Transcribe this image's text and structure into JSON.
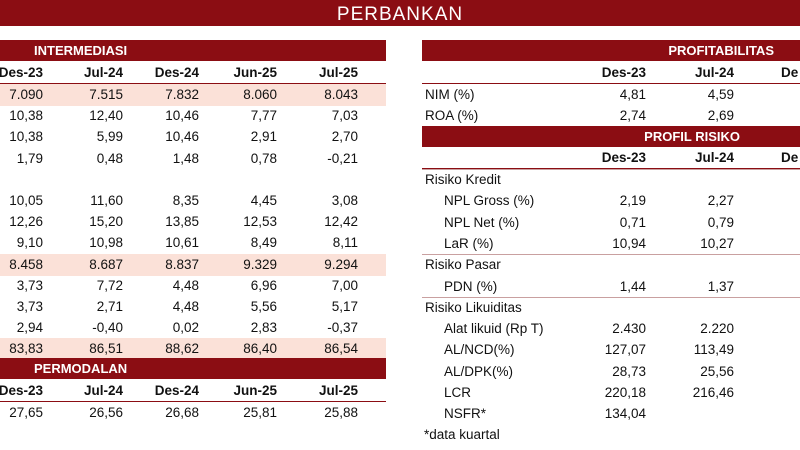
{
  "banner_title": "PERBANKAN",
  "intermediasi": {
    "title": "INTERMEDIASI",
    "columns": [
      "Des-23",
      "Jul-24",
      "Des-24",
      "Jun-25",
      "Jul-25"
    ],
    "rows": [
      {
        "values": [
          "7.090",
          "7.515",
          "7.832",
          "8.060",
          "8.043"
        ],
        "highlight": true
      },
      {
        "values": [
          "10,38",
          "12,40",
          "10,46",
          "7,77",
          "7,03"
        ]
      },
      {
        "values": [
          "10,38",
          "5,99",
          "10,46",
          "2,91",
          "2,70"
        ]
      },
      {
        "values": [
          "1,79",
          "0,48",
          "1,48",
          "0,78",
          "-0,21"
        ]
      },
      {
        "values": [
          "",
          "",
          "",
          "",
          ""
        ]
      },
      {
        "values": [
          "10,05",
          "11,60",
          "8,35",
          "4,45",
          "3,08"
        ]
      },
      {
        "values": [
          "12,26",
          "15,20",
          "13,85",
          "12,53",
          "12,42"
        ]
      },
      {
        "values": [
          "9,10",
          "10,98",
          "10,61",
          "8,49",
          "8,11"
        ]
      },
      {
        "values": [
          "8.458",
          "8.687",
          "8.837",
          "9.329",
          "9.294"
        ],
        "highlight": true
      },
      {
        "values": [
          "3,73",
          "7,72",
          "4,48",
          "6,96",
          "7,00"
        ]
      },
      {
        "values": [
          "3,73",
          "2,71",
          "4,48",
          "5,56",
          "5,17"
        ]
      },
      {
        "values": [
          "2,94",
          "-0,40",
          "0,02",
          "2,83",
          "-0,37"
        ]
      },
      {
        "values": [
          "83,83",
          "86,51",
          "88,62",
          "86,40",
          "86,54"
        ],
        "highlight": true
      }
    ]
  },
  "permodalan": {
    "title": "PERMODALAN",
    "columns": [
      "Des-23",
      "Jul-24",
      "Des-24",
      "Jun-25",
      "Jul-25"
    ],
    "rows": [
      {
        "values": [
          "27,65",
          "26,56",
          "26,68",
          "25,81",
          "25,88"
        ]
      }
    ]
  },
  "profitabilitas": {
    "title": "PROFITABILITAS",
    "columns": [
      "Des-23",
      "Jul-24",
      "De"
    ],
    "rows": [
      {
        "label": "NIM (%)",
        "values": [
          "4,81",
          "4,59"
        ]
      },
      {
        "label": "ROA (%)",
        "values": [
          "2,74",
          "2,69"
        ]
      }
    ]
  },
  "profil_risiko": {
    "title": "PROFIL RISIKO",
    "columns": [
      "Des-23",
      "Jul-24",
      "De"
    ],
    "rows": [
      {
        "label": "Risiko Kredit",
        "group": true,
        "values": [
          "",
          ""
        ]
      },
      {
        "label": "NPL Gross (%)",
        "values": [
          "2,19",
          "2,27"
        ]
      },
      {
        "label": "NPL Net (%)",
        "values": [
          "0,71",
          "0,79"
        ]
      },
      {
        "label": "LaR (%)",
        "values": [
          "10,94",
          "10,27"
        ]
      },
      {
        "label": "Risiko Pasar",
        "group": true,
        "values": [
          "",
          ""
        ]
      },
      {
        "label": "PDN (%)",
        "values": [
          "1,44",
          "1,37"
        ]
      },
      {
        "label": "Risiko Likuiditas",
        "group": true,
        "values": [
          "",
          ""
        ]
      },
      {
        "label": "Alat likuid (Rp T)",
        "values": [
          "2.430",
          "2.220"
        ]
      },
      {
        "label": "AL/NCD(%)",
        "values": [
          "127,07",
          "113,49"
        ]
      },
      {
        "label": "AL/DPK(%)",
        "values": [
          "28,73",
          "25,56"
        ]
      },
      {
        "label": "LCR",
        "values": [
          "220,18",
          "216,46"
        ]
      },
      {
        "label": "NSFR*",
        "values": [
          "134,04",
          ""
        ]
      }
    ]
  },
  "footnote": "*data kuartal"
}
